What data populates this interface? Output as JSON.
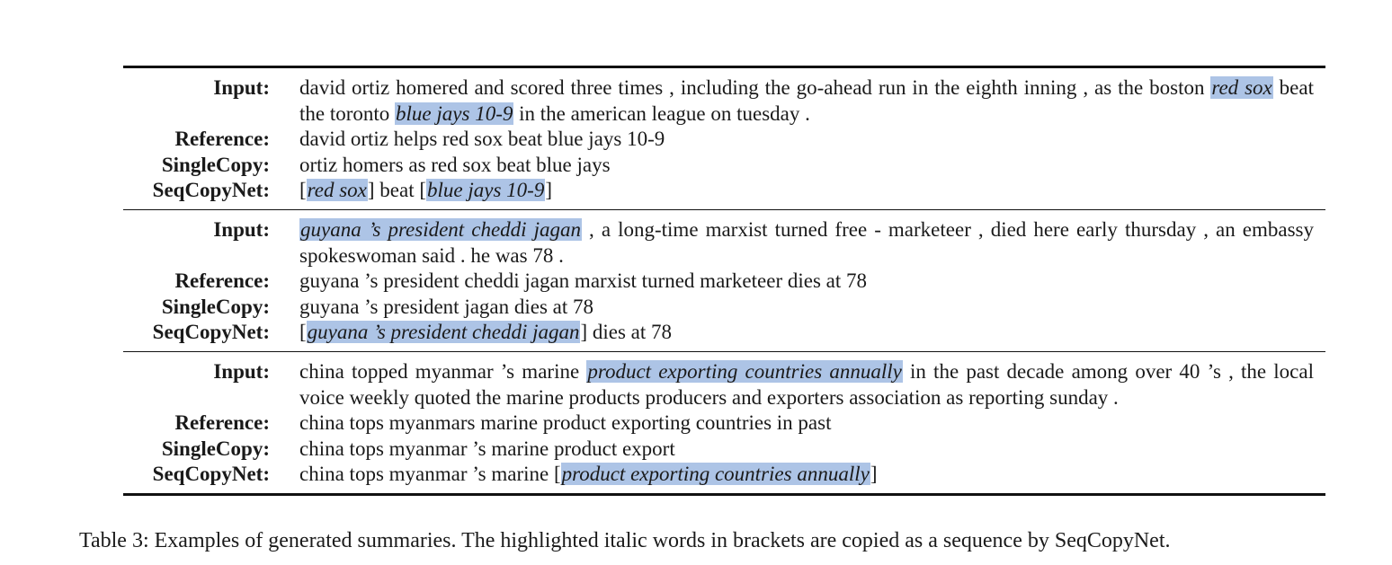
{
  "examples": [
    {
      "input": [
        {
          "text": "david ortiz homered and scored three times , including the go-ahead run in the eighth inning , as the boston ",
          "hl": false
        },
        {
          "text": "red sox",
          "hl": true
        },
        {
          "text": " beat the toronto ",
          "hl": false
        },
        {
          "text": "blue jays 10-9",
          "hl": true
        },
        {
          "text": " in the american league on tuesday .",
          "hl": false
        }
      ],
      "reference": "david ortiz helps red sox beat blue jays 10-9",
      "singlecopy": "ortiz homers as red sox beat blue jays",
      "seqcopynet": [
        {
          "text": "[",
          "hl": false
        },
        {
          "text": "red sox",
          "hl": true
        },
        {
          "text": "] beat [",
          "hl": false
        },
        {
          "text": "blue jays 10-9",
          "hl": true
        },
        {
          "text": "]",
          "hl": false
        }
      ]
    },
    {
      "input": [
        {
          "text": "guyana ’s president cheddi jagan",
          "hl": true
        },
        {
          "text": " , a long-time marxist turned free - marketeer , died here early thursday , an embassy spokeswoman said . he was 78 .",
          "hl": false
        }
      ],
      "reference": "guyana ’s president cheddi jagan marxist turned marketeer dies at 78",
      "singlecopy": "guyana ’s president jagan dies at 78",
      "seqcopynet": [
        {
          "text": "[",
          "hl": false
        },
        {
          "text": "guyana ’s president cheddi jagan",
          "hl": true
        },
        {
          "text": "] dies at 78",
          "hl": false
        }
      ]
    },
    {
      "input": [
        {
          "text": "china topped myanmar ’s marine ",
          "hl": false
        },
        {
          "text": "product exporting countries annually",
          "hl": true
        },
        {
          "text": " in the past decade among over 40 ’s , the local voice weekly quoted the marine products producers and exporters association as reporting sunday .",
          "hl": false
        }
      ],
      "reference": "china tops myanmars marine product exporting countries in past",
      "singlecopy": "china tops myanmar ’s marine product export",
      "seqcopynet": [
        {
          "text": "china tops myanmar ’s marine [",
          "hl": false
        },
        {
          "text": "product exporting countries annually",
          "hl": true
        },
        {
          "text": "]",
          "hl": false
        }
      ]
    }
  ],
  "labels": {
    "input": "Input:",
    "reference": "Reference:",
    "singlecopy": "SingleCopy:",
    "seqcopynet": "SeqCopyNet:"
  },
  "caption": "Table 3: Examples of generated summaries. The highlighted italic words in brackets are copied as a sequence by SeqCopyNet.",
  "colors": {
    "highlight": "#adc4e6",
    "rule": "#111111"
  }
}
